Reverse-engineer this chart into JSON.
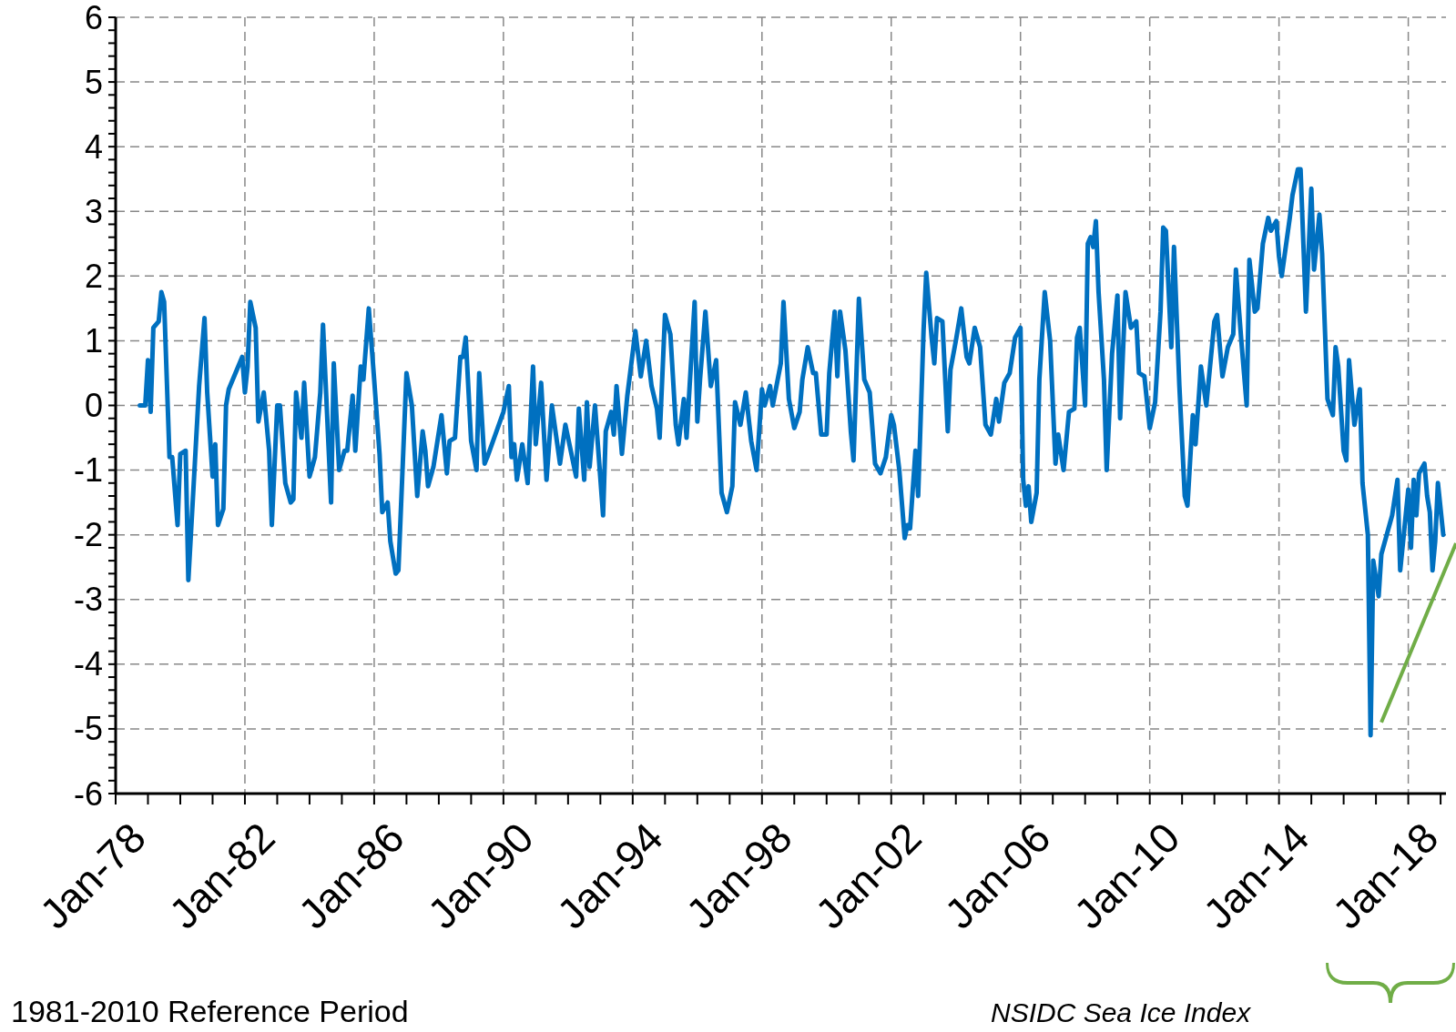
{
  "chart_data": {
    "type": "line",
    "x": [
      "1978-10",
      "1978-12",
      "1979-01",
      "1979-02",
      "1979-03",
      "1979-05",
      "1979-06",
      "1979-07",
      "1979-09",
      "1979-10",
      "1979-12",
      "1980-01",
      "1980-03",
      "1980-04",
      "1980-06",
      "1980-08",
      "1980-10",
      "1980-11",
      "1981-01",
      "1981-02",
      "1981-03",
      "1981-05",
      "1981-06",
      "1981-07",
      "1981-09",
      "1981-12",
      "1982-01",
      "1982-02",
      "1982-03",
      "1982-05",
      "1982-06",
      "1982-08",
      "1982-10",
      "1982-11",
      "1983-01",
      "1983-02",
      "1983-04",
      "1983-06",
      "1983-07",
      "1983-08",
      "1983-10",
      "1983-11",
      "1984-01",
      "1984-03",
      "1984-05",
      "1984-06",
      "1984-09",
      "1984-10",
      "1984-12",
      "1985-02",
      "1985-03",
      "1985-05",
      "1985-06",
      "1985-08",
      "1985-09",
      "1985-11",
      "1986-01",
      "1986-03",
      "1986-04",
      "1986-06",
      "1986-07",
      "1986-09",
      "1986-10",
      "1987-01",
      "1987-03",
      "1987-05",
      "1987-07",
      "1987-08",
      "1987-09",
      "1987-11",
      "1988-02",
      "1988-04",
      "1988-05",
      "1988-07",
      "1988-09",
      "1988-10",
      "1988-11",
      "1989-01",
      "1989-03",
      "1989-04",
      "1989-06",
      "1989-07",
      "1989-10",
      "1990-01",
      "1990-03",
      "1990-04",
      "1990-05",
      "1990-06",
      "1990-08",
      "1990-10",
      "1990-12",
      "1991-01",
      "1991-03",
      "1991-05",
      "1991-07",
      "1991-09",
      "1991-10",
      "1991-12",
      "1992-02",
      "1992-04",
      "1992-05",
      "1992-07",
      "1992-08",
      "1992-09",
      "1992-11",
      "1993-02",
      "1993-03",
      "1993-05",
      "1993-06",
      "1993-07",
      "1993-09",
      "1993-11",
      "1994-02",
      "1994-04",
      "1994-06",
      "1994-08",
      "1994-10",
      "1994-11",
      "1995-01",
      "1995-03",
      "1995-05",
      "1995-06",
      "1995-08",
      "1995-09",
      "1995-12",
      "1996-01",
      "1996-02",
      "1996-04",
      "1996-06",
      "1996-08",
      "1996-10",
      "1996-12",
      "1997-02",
      "1997-03",
      "1997-05",
      "1997-07",
      "1997-09",
      "1997-11",
      "1998-01",
      "1998-02",
      "1998-04",
      "1998-05",
      "1998-08",
      "1998-09",
      "1998-11",
      "1999-01",
      "1999-03",
      "1999-04",
      "1999-06",
      "1999-08",
      "1999-09",
      "1999-11",
      "2000-01",
      "2000-02",
      "2000-04",
      "2000-05",
      "2000-06",
      "2000-08",
      "2000-10",
      "2000-11",
      "2001-01",
      "2001-03",
      "2001-05",
      "2001-07",
      "2001-09",
      "2001-11",
      "2002-01",
      "2002-02",
      "2002-04",
      "2002-06",
      "2002-07",
      "2002-08",
      "2002-09",
      "2002-10",
      "2002-11",
      "2003-01",
      "2003-02",
      "2003-04",
      "2003-05",
      "2003-06",
      "2003-08",
      "2003-10",
      "2003-11",
      "2004-01",
      "2004-03",
      "2004-05",
      "2004-06",
      "2004-08",
      "2004-10",
      "2004-12",
      "2005-02",
      "2005-04",
      "2005-05",
      "2005-07",
      "2005-09",
      "2005-11",
      "2006-01",
      "2006-02",
      "2006-03",
      "2006-04",
      "2006-05",
      "2006-07",
      "2006-08",
      "2006-10",
      "2006-12",
      "2007-02",
      "2007-03",
      "2007-05",
      "2007-07",
      "2007-09",
      "2007-10",
      "2007-11",
      "2008-01",
      "2008-02",
      "2008-03",
      "2008-04",
      "2008-05",
      "2008-06",
      "2008-08",
      "2008-09",
      "2008-11",
      "2009-01",
      "2009-02",
      "2009-04",
      "2009-06",
      "2009-08",
      "2009-09",
      "2009-11",
      "2010-01",
      "2010-03",
      "2010-05",
      "2010-06",
      "2010-07",
      "2010-09",
      "2010-10",
      "2010-12",
      "2011-02",
      "2011-03",
      "2011-05",
      "2011-06",
      "2011-08",
      "2011-10",
      "2012-01",
      "2012-02",
      "2012-04",
      "2012-06",
      "2012-08",
      "2012-09",
      "2012-11",
      "2013-01",
      "2013-02",
      "2013-04",
      "2013-05",
      "2013-07",
      "2013-09",
      "2013-10",
      "2013-12",
      "2014-01",
      "2014-02",
      "2014-05",
      "2014-06",
      "2014-08",
      "2014-09",
      "2014-11",
      "2015-01",
      "2015-02",
      "2015-04",
      "2015-05",
      "2015-07",
      "2015-09",
      "2015-10",
      "2015-11",
      "2016-01",
      "2016-02",
      "2016-03",
      "2016-05",
      "2016-07",
      "2016-08",
      "2016-10",
      "2016-11",
      "2016-12",
      "2017-02",
      "2017-03",
      "2017-05",
      "2017-06",
      "2017-07",
      "2017-09",
      "2017-10",
      "2018-01",
      "2018-02",
      "2018-03",
      "2018-04",
      "2018-05",
      "2018-07",
      "2018-08",
      "2018-09",
      "2018-10",
      "2018-11",
      "2018-12",
      "2019-02"
    ],
    "series": [
      {
        "color": "#0070c0",
        "values": [
          0,
          0,
          0.7,
          -0.1,
          1.2,
          1.3,
          1.75,
          1.6,
          -0.8,
          -0.8,
          -1.85,
          -0.75,
          -0.7,
          -2.7,
          -1.2,
          0.3,
          1.35,
          0.2,
          -1.1,
          -0.6,
          -1.85,
          -1.6,
          0,
          0.25,
          0.45,
          0.75,
          0.2,
          0.6,
          1.6,
          1.2,
          -0.25,
          0.2,
          -0.7,
          -1.85,
          0,
          0,
          -1.2,
          -1.5,
          -1.45,
          0.2,
          -0.5,
          0.35,
          -1.1,
          -0.8,
          0.2,
          1.25,
          -1.5,
          0.65,
          -1,
          -0.7,
          -0.7,
          0.15,
          -0.7,
          0.6,
          0.4,
          1.5,
          0.4,
          -0.75,
          -1.65,
          -1.5,
          -2.1,
          -2.6,
          -2.55,
          0.5,
          0,
          -1.4,
          -0.4,
          -0.7,
          -1.25,
          -0.95,
          -0.15,
          -1.05,
          -0.55,
          -0.5,
          0.75,
          0.75,
          1.05,
          -0.55,
          -1,
          0.5,
          -0.9,
          -0.8,
          -0.45,
          -0.1,
          0.3,
          -0.8,
          -0.6,
          -1.15,
          -0.6,
          -1.2,
          0.6,
          -0.6,
          0.35,
          -1.15,
          0,
          -0.6,
          -0.9,
          -0.3,
          -0.7,
          -1.1,
          -0.05,
          -1.15,
          0.05,
          -0.95,
          0,
          -1.7,
          -0.4,
          -0.1,
          -0.45,
          0.3,
          -0.75,
          0.15,
          1.15,
          0.45,
          1,
          0.3,
          -0.05,
          -0.5,
          1.4,
          1.1,
          -0.3,
          -0.6,
          0.1,
          -0.5,
          1.6,
          -0.25,
          0.4,
          1.45,
          0.3,
          0.7,
          -1.35,
          -1.65,
          -1.25,
          0.05,
          -0.3,
          0.2,
          -0.55,
          -1,
          0.25,
          0,
          0.3,
          0,
          0.65,
          1.6,
          0.1,
          -0.35,
          -0.1,
          0.4,
          0.9,
          0.5,
          0.5,
          -0.45,
          -0.45,
          0.5,
          1.45,
          0.45,
          1.45,
          0.85,
          -0.4,
          -0.85,
          1.65,
          0.4,
          0.2,
          -0.9,
          -1.05,
          -0.8,
          -0.15,
          -0.3,
          -1,
          -2.05,
          -1.85,
          -1.9,
          -1.3,
          -0.7,
          -1.4,
          1.15,
          2.05,
          1.05,
          0.65,
          1.35,
          1.3,
          -0.4,
          0.55,
          1,
          1.5,
          0.75,
          0.65,
          1.2,
          0.9,
          -0.3,
          -0.45,
          0.1,
          -0.25,
          0.35,
          0.5,
          1.05,
          1.2,
          -1.15,
          -1.55,
          -1.25,
          -1.8,
          -1.35,
          0.4,
          1.75,
          1,
          -0.9,
          -0.45,
          -1,
          -0.1,
          -0.05,
          1.05,
          1.2,
          0,
          2.5,
          2.6,
          2.45,
          2.85,
          1.75,
          0.4,
          -1,
          0.8,
          1.7,
          -0.2,
          1.75,
          1.2,
          1.3,
          0.5,
          0.45,
          -0.35,
          0.05,
          1.45,
          2.75,
          2.7,
          0.9,
          2.45,
          0.3,
          -1.4,
          -1.55,
          -0.15,
          -0.6,
          0.6,
          0,
          1.3,
          1.4,
          0.45,
          0.9,
          1.1,
          2.1,
          1,
          0,
          2.25,
          1.45,
          1.5,
          2.5,
          2.9,
          2.7,
          2.85,
          2.3,
          2,
          2.9,
          3.25,
          3.65,
          3.65,
          1.45,
          3.35,
          2.1,
          2.95,
          2.35,
          0.1,
          -0.15,
          0.9,
          0.6,
          -0.7,
          -0.85,
          0.7,
          -0.3,
          0.25,
          -1.2,
          -2,
          -5.1,
          -2.4,
          -2.95,
          -2.3,
          -2,
          -1.85,
          -1.7,
          -1.15,
          -2.55,
          -1.3,
          -2.2,
          -1.15,
          -1.7,
          -1.05,
          -0.9,
          -1.4,
          -1.65,
          -2.55,
          -2.1,
          -1.2,
          -2
        ]
      }
    ],
    "xlim": [
      "1978-01",
      "2019-03"
    ],
    "xticks": [
      {
        "value": "1978-01",
        "label": "Jan-78"
      },
      {
        "value": "1979-01",
        "label": null
      },
      {
        "value": "1980-01",
        "label": null
      },
      {
        "value": "1981-01",
        "label": null
      },
      {
        "value": "1982-01",
        "label": "Jan-82"
      },
      {
        "value": "1983-01",
        "label": null
      },
      {
        "value": "1984-01",
        "label": null
      },
      {
        "value": "1985-01",
        "label": null
      },
      {
        "value": "1986-01",
        "label": "Jan-86"
      },
      {
        "value": "1987-01",
        "label": null
      },
      {
        "value": "1988-01",
        "label": null
      },
      {
        "value": "1989-01",
        "label": null
      },
      {
        "value": "1990-01",
        "label": "Jan-90"
      },
      {
        "value": "1991-01",
        "label": null
      },
      {
        "value": "1992-01",
        "label": null
      },
      {
        "value": "1993-01",
        "label": null
      },
      {
        "value": "1994-01",
        "label": "Jan-94"
      },
      {
        "value": "1995-01",
        "label": null
      },
      {
        "value": "1996-01",
        "label": null
      },
      {
        "value": "1997-01",
        "label": null
      },
      {
        "value": "1998-01",
        "label": "Jan-98"
      },
      {
        "value": "1999-01",
        "label": null
      },
      {
        "value": "2000-01",
        "label": null
      },
      {
        "value": "2001-01",
        "label": null
      },
      {
        "value": "2002-01",
        "label": "Jan-02"
      },
      {
        "value": "2003-01",
        "label": null
      },
      {
        "value": "2004-01",
        "label": null
      },
      {
        "value": "2005-01",
        "label": null
      },
      {
        "value": "2006-01",
        "label": "Jan-06"
      },
      {
        "value": "2007-01",
        "label": null
      },
      {
        "value": "2008-01",
        "label": null
      },
      {
        "value": "2009-01",
        "label": null
      },
      {
        "value": "2010-01",
        "label": "Jan-10"
      },
      {
        "value": "2011-01",
        "label": null
      },
      {
        "value": "2012-01",
        "label": null
      },
      {
        "value": "2013-01",
        "label": null
      },
      {
        "value": "2014-01",
        "label": "Jan-14"
      },
      {
        "value": "2015-01",
        "label": null
      },
      {
        "value": "2016-01",
        "label": null
      },
      {
        "value": "2017-01",
        "label": null
      },
      {
        "value": "2018-01",
        "label": "Jan-18"
      },
      {
        "value": "2019-01",
        "label": null
      }
    ],
    "ylim": [
      -6,
      6
    ],
    "yticks": [
      -6,
      {
        "value": -5.8,
        "label": null
      },
      {
        "value": -5.6,
        "label": null
      },
      {
        "value": -5.4,
        "label": null
      },
      {
        "value": -5.2,
        "label": null
      },
      -5,
      {
        "value": -4.8,
        "label": null
      },
      {
        "value": -4.6,
        "label": null
      },
      {
        "value": -4.4,
        "label": null
      },
      {
        "value": -4.2,
        "label": null
      },
      -4,
      {
        "value": -3.8,
        "label": null
      },
      {
        "value": -3.6,
        "label": null
      },
      {
        "value": -3.4,
        "label": null
      },
      {
        "value": -3.2,
        "label": null
      },
      -3,
      {
        "value": -2.8,
        "label": null
      },
      {
        "value": -2.6,
        "label": null
      },
      {
        "value": -2.4,
        "label": null
      },
      {
        "value": -2.2,
        "label": null
      },
      -2,
      {
        "value": -1.8,
        "label": null
      },
      {
        "value": -1.6,
        "label": null
      },
      {
        "value": -1.4,
        "label": null
      },
      {
        "value": -1.2,
        "label": null
      },
      -1,
      {
        "value": -0.8,
        "label": null
      },
      {
        "value": -0.6,
        "label": null
      },
      {
        "value": -0.4,
        "label": null
      },
      {
        "value": -0.2,
        "label": null
      },
      0,
      {
        "value": 0.2,
        "label": null
      },
      {
        "value": 0.4,
        "label": null
      },
      {
        "value": 0.6,
        "label": null
      },
      {
        "value": 0.8,
        "label": null
      },
      1,
      {
        "value": 1.2,
        "label": null
      },
      {
        "value": 1.4,
        "label": null
      },
      {
        "value": 1.6,
        "label": null
      },
      {
        "value": 1.8,
        "label": null
      },
      2,
      {
        "value": 2.2,
        "label": null
      },
      {
        "value": 2.4,
        "label": null
      },
      {
        "value": 2.6,
        "label": null
      },
      {
        "value": 2.8,
        "label": null
      },
      3,
      {
        "value": 3.2,
        "label": null
      },
      {
        "value": 3.4,
        "label": null
      },
      {
        "value": 3.6,
        "label": null
      },
      {
        "value": 3.8,
        "label": null
      },
      4,
      {
        "value": 4.2,
        "label": null
      },
      {
        "value": 4.4,
        "label": null
      },
      {
        "value": 4.6,
        "label": null
      },
      {
        "value": 4.8,
        "label": null
      },
      5,
      {
        "value": 5.2,
        "label": null
      },
      {
        "value": 5.4,
        "label": null
      },
      {
        "value": 5.6,
        "label": null
      },
      {
        "value": 5.8,
        "label": null
      },
      6
    ],
    "grid": true,
    "line_style": "solid",
    "annotations": [
      "1981-2010 Reference Period",
      "NSIDC Sea Ice Index"
    ]
  }
}
